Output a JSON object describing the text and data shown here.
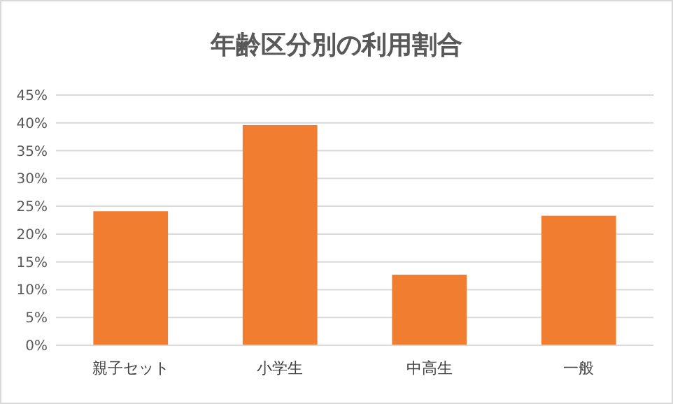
{
  "chart_data": {
    "type": "bar",
    "title": "年齢区分別の利用割合",
    "categories": [
      "親子セット",
      "小学生",
      "中高生",
      "一般"
    ],
    "values": [
      24.1,
      39.6,
      12.7,
      23.3
    ],
    "color": "#f07d30",
    "ylim": [
      0,
      45
    ],
    "yticks": [
      {
        "value": 0,
        "label": "0%"
      },
      {
        "value": 5,
        "label": "5%"
      },
      {
        "value": 10,
        "label": "10%"
      },
      {
        "value": 15,
        "label": "15%"
      },
      {
        "value": 20,
        "label": "20%"
      },
      {
        "value": 25,
        "label": "25%"
      },
      {
        "value": 30,
        "label": "30%"
      },
      {
        "value": 35,
        "label": "35%"
      },
      {
        "value": 40,
        "label": "40%"
      },
      {
        "value": 45,
        "label": "45%"
      }
    ],
    "grid": true
  }
}
